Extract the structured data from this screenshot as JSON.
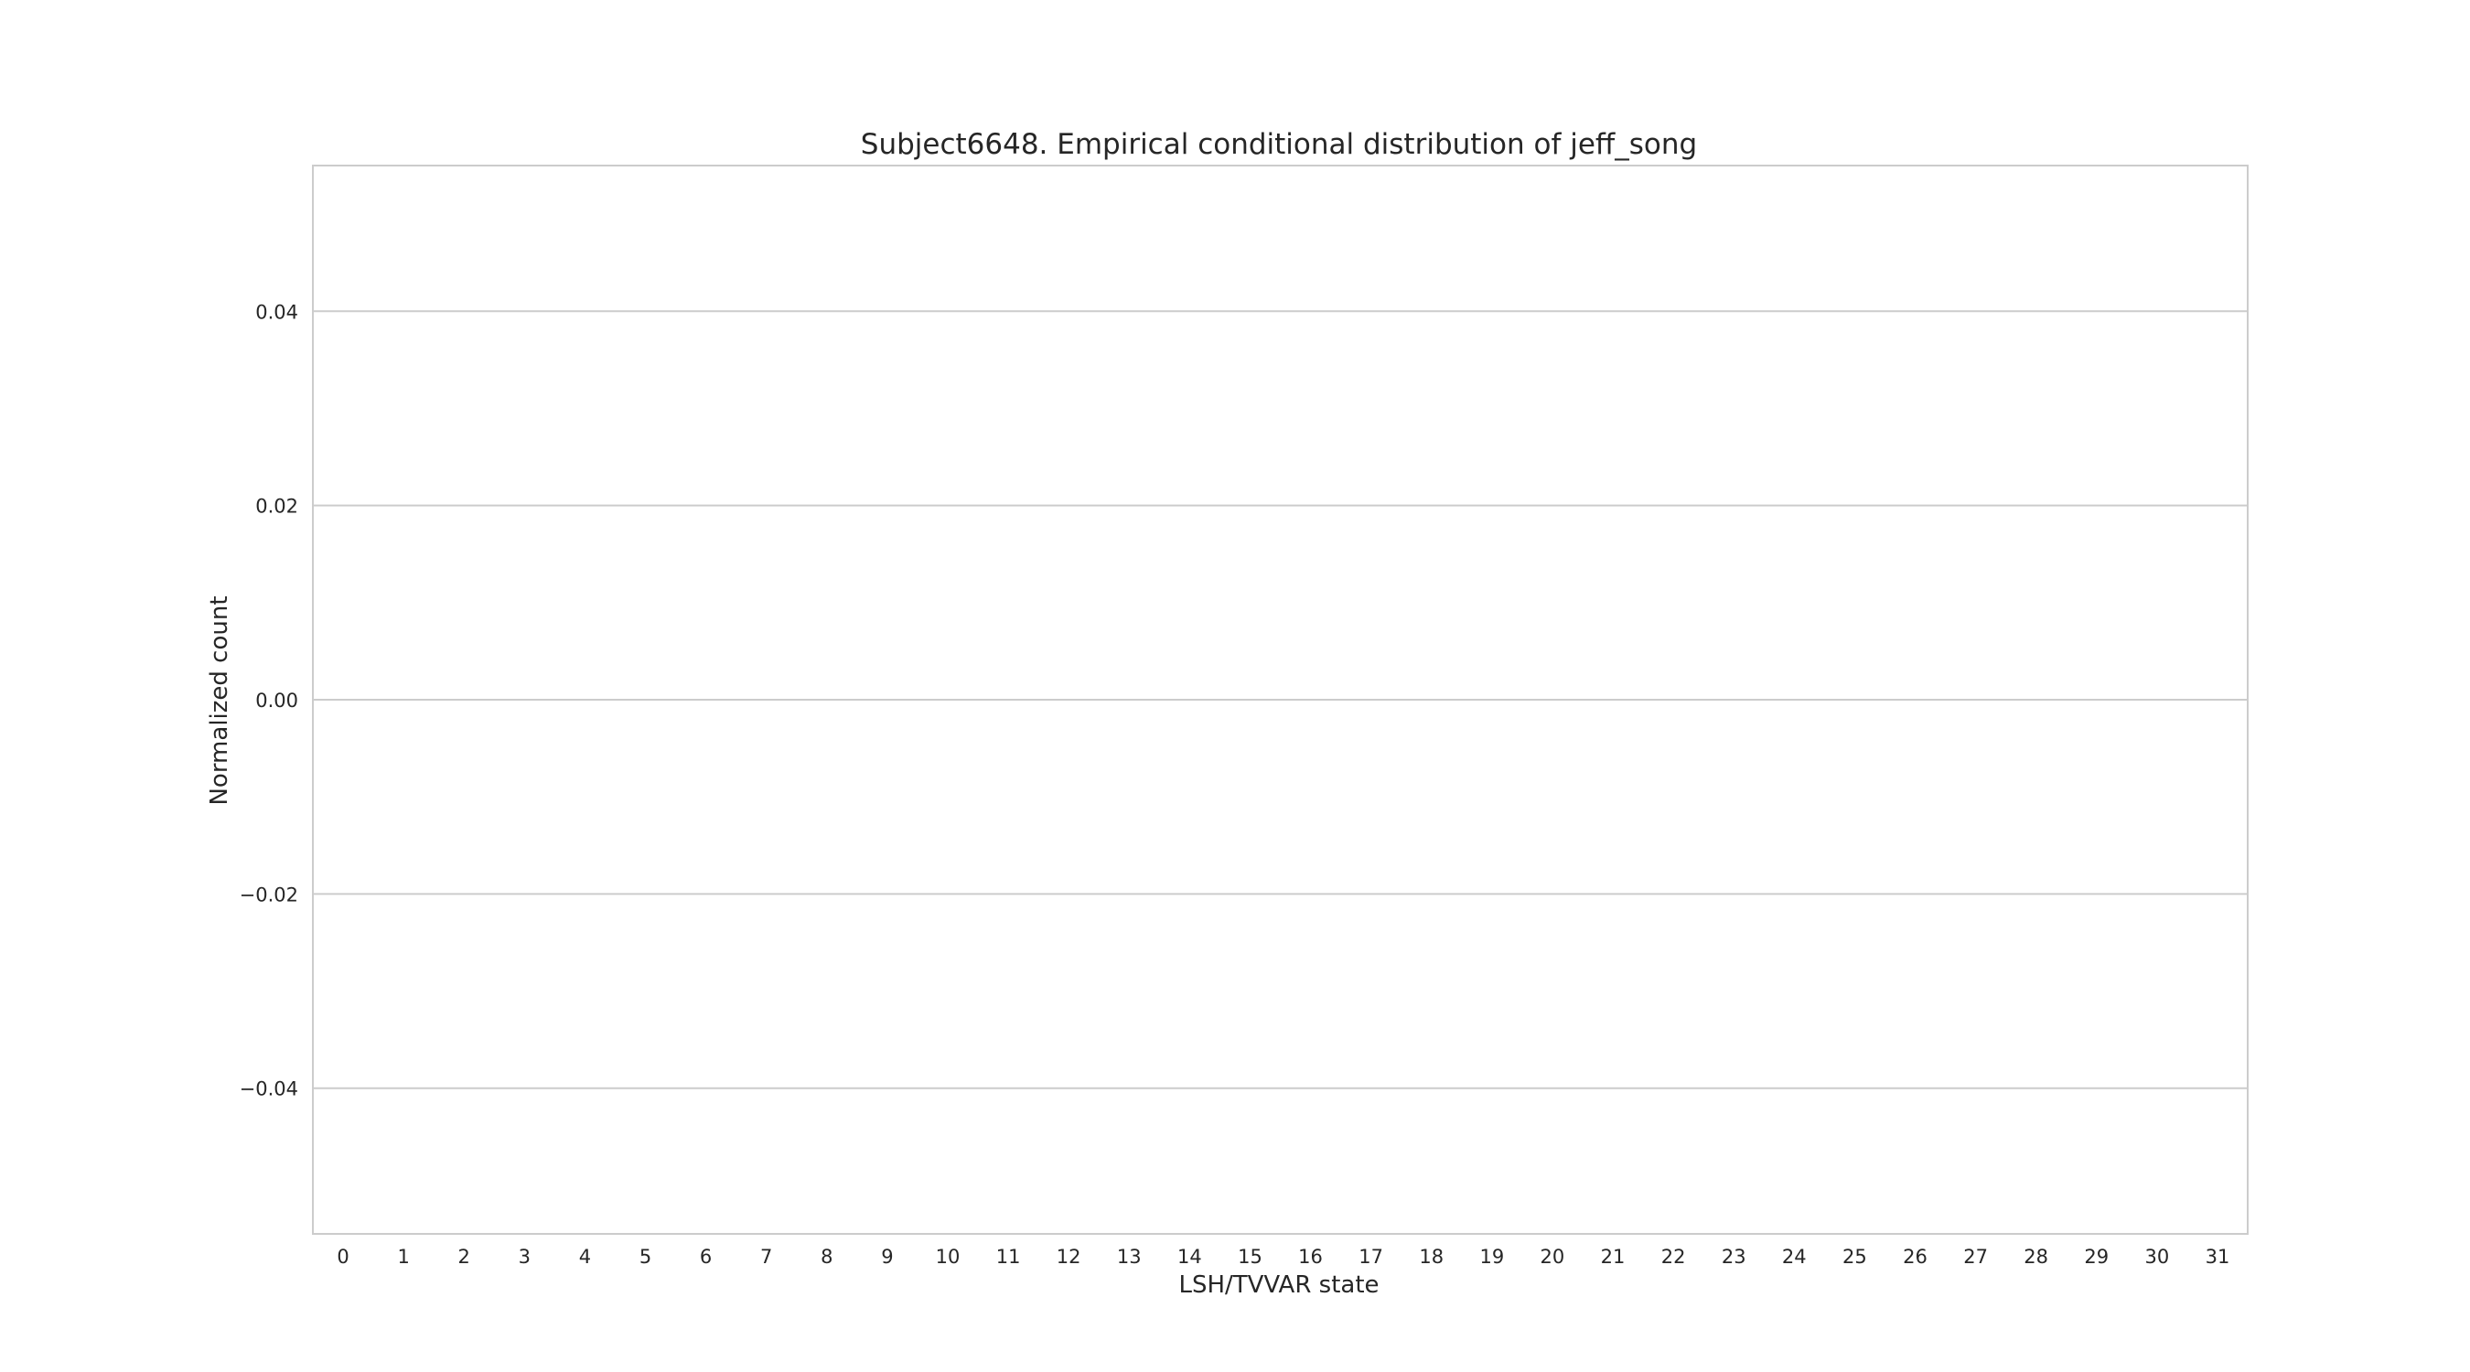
{
  "chart_data": {
    "type": "bar",
    "title": "Subject6648. Empirical conditional distribution of jeff_song",
    "xlabel": "LSH/TVVAR state",
    "ylabel": "Normalized count",
    "categories": [
      "0",
      "1",
      "2",
      "3",
      "4",
      "5",
      "6",
      "7",
      "8",
      "9",
      "10",
      "11",
      "12",
      "13",
      "14",
      "15",
      "16",
      "17",
      "18",
      "19",
      "20",
      "21",
      "22",
      "23",
      "24",
      "25",
      "26",
      "27",
      "28",
      "29",
      "30",
      "31"
    ],
    "values": [
      0,
      0,
      0,
      0,
      0,
      0,
      0,
      0,
      0,
      0,
      0,
      0,
      0,
      0,
      0,
      0,
      0,
      0,
      0,
      0,
      0,
      0,
      0,
      0,
      0,
      0,
      0,
      0,
      0,
      0,
      0,
      0
    ],
    "ylim": [
      -0.055,
      0.055
    ],
    "yticks": [
      {
        "value": 0.04,
        "label": "0.04"
      },
      {
        "value": 0.02,
        "label": "0.02"
      },
      {
        "value": 0.0,
        "label": "0.00"
      },
      {
        "value": -0.02,
        "label": "−0.02"
      },
      {
        "value": -0.04,
        "label": "−0.04"
      }
    ],
    "grid": true,
    "legend": "none",
    "bar_color": "#4c72b0"
  }
}
